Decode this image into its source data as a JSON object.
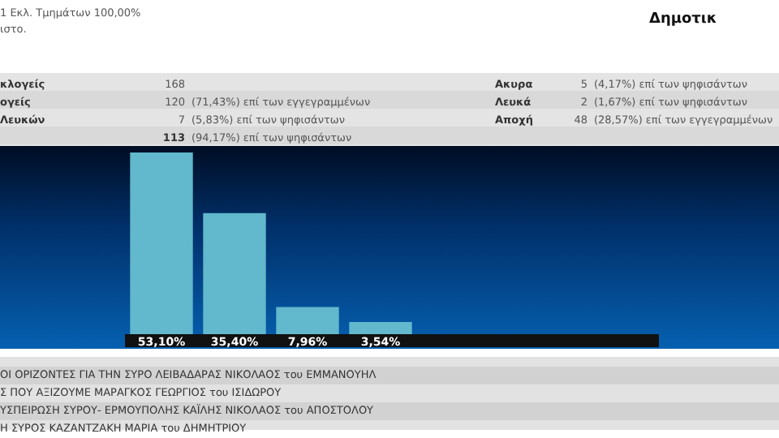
{
  "chart_data": {
    "type": "bar",
    "categories": [
      null,
      null,
      null,
      null
    ],
    "values": [
      53.1,
      35.4,
      7.96,
      3.54
    ],
    "value_labels": [
      "53,10%",
      "35,40%",
      "7,96%",
      "3,54%"
    ],
    "color": "#62b8cc",
    "annotations": [
      "1 Εκλ. Τμημάτων 100,00%",
      "ιστο.",
      "Δημοτικ",
      "κλογείς",
      "168",
      "ογείς",
      "120",
      "(71,43%) επί των εγγεγραμμένων",
      "Λευκών",
      "7",
      "(5,83%) επί των ψηφισάντων",
      "113",
      "(94,17%) επί των ψηφισάντων",
      "Ακυρα",
      "5",
      "(4,17%) επί των ψηφισάντων",
      "Λευκά",
      "2",
      "(1,67%) επί των ψηφισάντων",
      "Αποχή",
      "48",
      "(28,57%) επί των εγγεγραμμένων",
      "ΟΙ ΟΡΙΖΟΝΤΕΣ ΓΙΑ ΤΗΝ ΣΥΡΟ ΛΕΙΒΑΔΑΡΑΣ ΝΙΚΟΛΑΟΣ του ΕΜΜΑΝΟΥΗΛ",
      "Σ ΠΟΥ ΑΞΙΖΟΥΜΕ ΜΑΡΑΓΚΟΣ ΓΕΩΡΓΙΟΣ του ΙΣΙΔΩΡΟΥ",
      "ΥΣΠΕΙΡΩΣΗ ΣΥΡΟΥ- ΕΡΜΟΥΠΟΛΗΣ ΚΑΪΛΗΣ ΝΙΚΟΛΑΟΣ του ΑΠΟΣΤΟΛΟΥ",
      "Η ΣΥΡΟΣ ΚΑΖΑΝΤΖΑΚΗ ΜΑΡΙΑ του ΔΗΜΗΤΡΙΟΥ"
    ]
  }
}
